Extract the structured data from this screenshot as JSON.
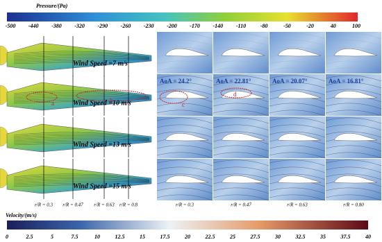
{
  "pressure_bar": {
    "title": "Pressure/(Pa)",
    "ticks": [
      -500,
      -440,
      -380,
      -320,
      -290,
      -260,
      -230,
      -200,
      -170,
      -140,
      -110,
      -80,
      -50,
      -20,
      40,
      100
    ]
  },
  "blades": [
    "Wind Speed =7 m/s",
    "Wind Speed =10 m/s",
    "Wind Speed =13 m/s",
    "Wind Speed =15 m/s"
  ],
  "blade_sections": [
    "r/R = 0.3",
    "r/R = 0.47",
    "r/R = 0.63",
    "r/R = 0.8"
  ],
  "airfoil_grid": {
    "aoa_labels": [
      "AoA = 24.2°",
      "AoA = 22.81°",
      "AoA = 20.07°",
      "AoA = 16.81°"
    ],
    "sections": [
      "r/R = 0.3",
      "r/R = 0.47",
      "r/R = 0.63",
      "r/R = 0.80"
    ]
  },
  "annotations": [
    "a",
    "b",
    "c",
    "d"
  ],
  "velocity_bar": {
    "title": "Velocity/(m/s)",
    "ticks": [
      0,
      2.5,
      5,
      7.5,
      10,
      12.5,
      15,
      17.5,
      20,
      22.5,
      25,
      27.5,
      30,
      32.5,
      35,
      37.5,
      40
    ]
  }
}
